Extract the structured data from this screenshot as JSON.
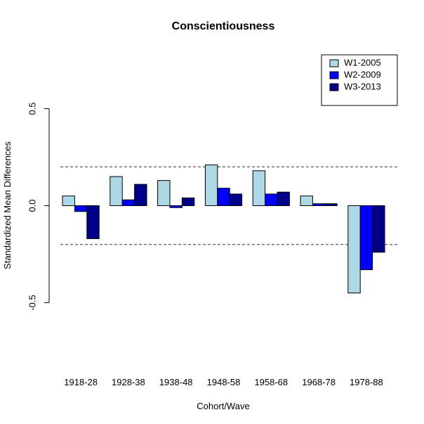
{
  "chart_data": {
    "type": "bar",
    "title": "Conscientiousness",
    "xlabel": "Cohort/Wave",
    "ylabel": "Standardized Mean Differences",
    "categories": [
      "1918-28",
      "1928-38",
      "1938-48",
      "1948-58",
      "1958-68",
      "1968-78",
      "1978-88"
    ],
    "series": [
      {
        "name": "W1-2005",
        "color": "#add8e6",
        "values": [
          0.05,
          0.15,
          0.13,
          0.21,
          0.18,
          0.05,
          -0.45
        ]
      },
      {
        "name": "W2-2009",
        "color": "#0000ff",
        "values": [
          -0.03,
          0.03,
          -0.01,
          0.09,
          0.06,
          0.01,
          -0.33
        ]
      },
      {
        "name": "W3-2013",
        "color": "#00008b",
        "values": [
          -0.17,
          0.11,
          0.04,
          0.06,
          0.07,
          0.01,
          -0.24
        ]
      }
    ],
    "ylim": [
      -0.5,
      0.5
    ],
    "yticks": [
      {
        "value": -0.5,
        "label": "-0.5"
      },
      {
        "value": 0.0,
        "label": "0.0"
      },
      {
        "value": 0.5,
        "label": "0.5"
      }
    ],
    "reference_lines": [
      0.2,
      -0.2
    ],
    "grid": false,
    "legend_position": "top-right"
  }
}
